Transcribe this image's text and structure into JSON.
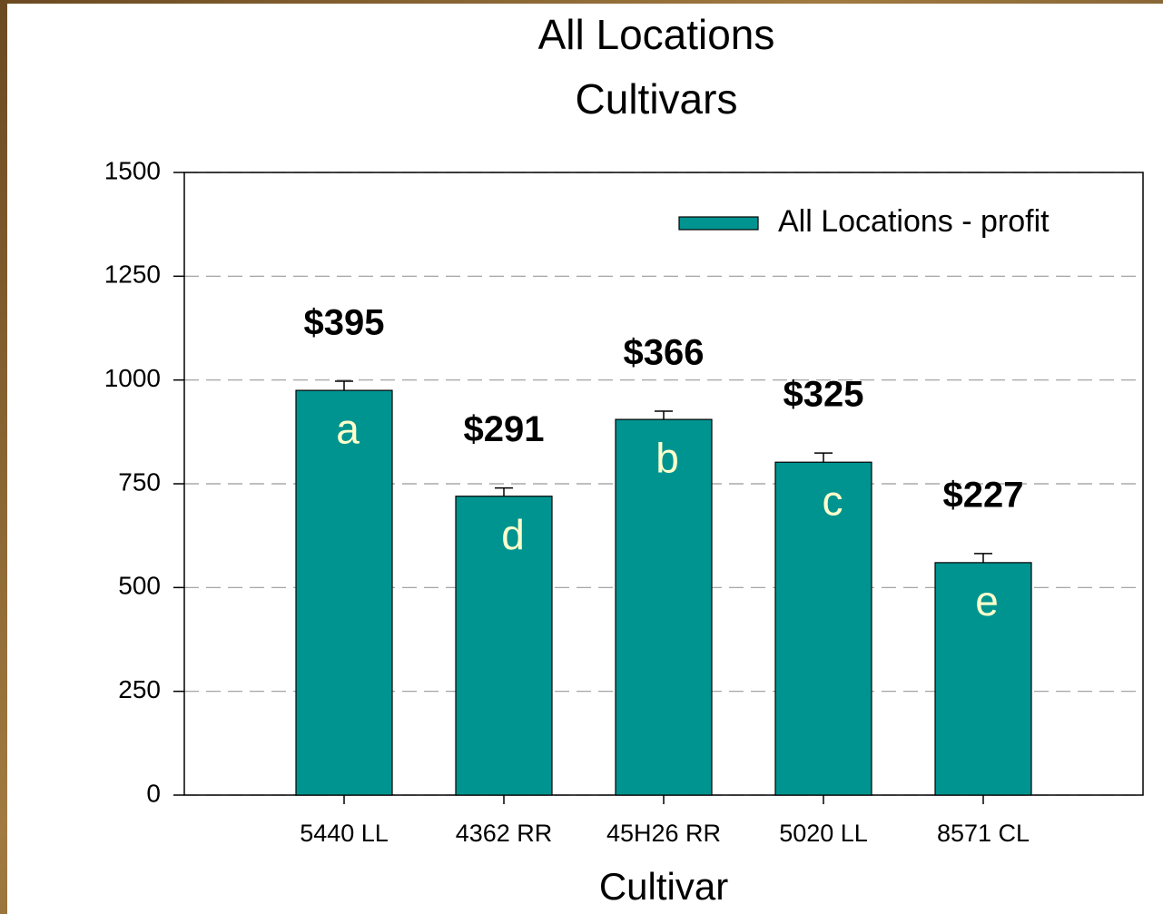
{
  "chart_data": {
    "type": "bar",
    "title": "All Locations",
    "subtitle": "Cultivars",
    "x_label": "Cultivar",
    "categories": [
      "5440 LL",
      "4362  RR",
      "45H26 RR",
      "5020 LL",
      "8571 CL"
    ],
    "series": [
      {
        "name": "All Locations - profit",
        "color": "#009490",
        "values": [
          975,
          720,
          905,
          802,
          560
        ],
        "errors": [
          22,
          20,
          20,
          22,
          22
        ]
      }
    ],
    "profit_labels": [
      "$395",
      "$291",
      "$366",
      "$325",
      "$227"
    ],
    "letters": [
      "a",
      "d",
      "b",
      "c",
      "e"
    ],
    "ylim": [
      0,
      1500
    ],
    "yticks": [
      0,
      250,
      500,
      750,
      1000,
      1250,
      1500
    ],
    "grid": true,
    "legend": "upper right"
  }
}
